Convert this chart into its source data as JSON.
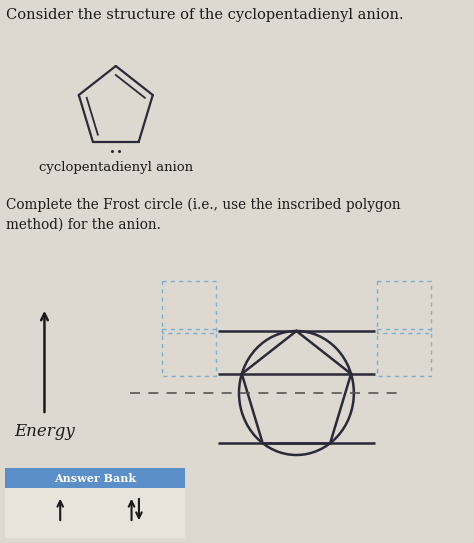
{
  "title": "Consider the structure of the cyclopentadienyl anion.",
  "label_molecule": "cyclopentadienyl anion",
  "label_instruction": "Complete the Frost circle (i.e., use the inscribed polygon\nmethod) for the anion.",
  "label_energy": "Energy",
  "label_answer_bank": "Answer Bank",
  "bg_color": "#ddd9d0",
  "text_color": "#1a1a1a",
  "pentagon_color": "#2a2a3a",
  "circle_color": "#2a2a3a",
  "line_color": "#2a2a3a",
  "dashed_line_color": "#555555",
  "dashed_box_color": "#7ab0d0",
  "answer_bank_color": "#5b8fc9",
  "arrow_color": "#1a1a1a",
  "fig_width": 4.74,
  "fig_height": 5.43,
  "dpi": 100
}
